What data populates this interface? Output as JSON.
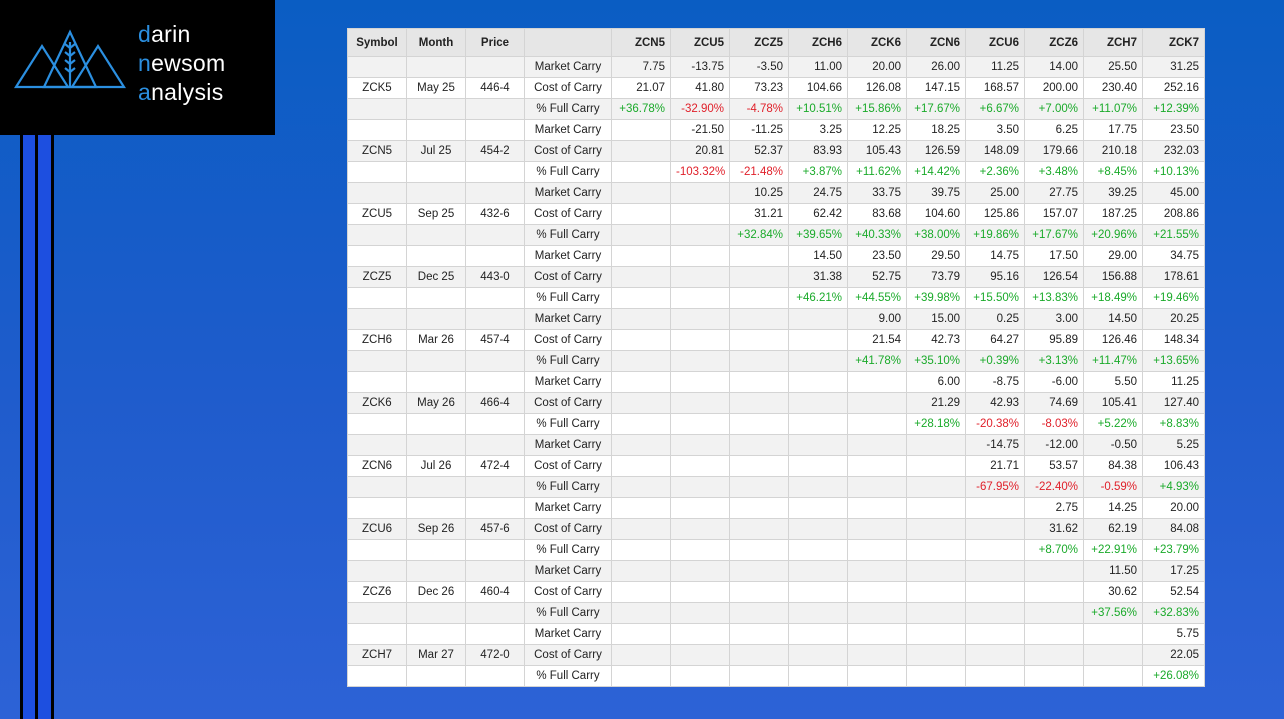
{
  "logo": {
    "lines": [
      "darin",
      "newsom",
      "analysis"
    ]
  },
  "table": {
    "columns": [
      "Symbol",
      "Month",
      "Price"
    ],
    "contracts": [
      "ZCN5",
      "ZCU5",
      "ZCZ5",
      "ZCH6",
      "ZCK6",
      "ZCN6",
      "ZCU6",
      "ZCZ6",
      "ZCH7",
      "ZCK7"
    ],
    "groups": [
      {
        "symbol": "ZCK5",
        "month": "May 25",
        "price": "446-4",
        "rows": [
          {
            "label": "Market Carry",
            "cells": [
              "7.75",
              "-13.75",
              "-3.50",
              "11.00",
              "20.00",
              "26.00",
              "11.25",
              "14.00",
              "25.50",
              "31.25"
            ]
          },
          {
            "label": "Cost of Carry",
            "cells": [
              "21.07",
              "41.80",
              "73.23",
              "104.66",
              "126.08",
              "147.15",
              "168.57",
              "200.00",
              "230.40",
              "252.16"
            ]
          },
          {
            "label": "% Full Carry",
            "cells": [
              "+36.78%",
              "-32.90%",
              "-4.78%",
              "+10.51%",
              "+15.86%",
              "+17.67%",
              "+6.67%",
              "+7.00%",
              "+11.07%",
              "+12.39%"
            ]
          }
        ]
      },
      {
        "symbol": "ZCN5",
        "month": "Jul 25",
        "price": "454-2",
        "rows": [
          {
            "label": "Market Carry",
            "cells": [
              null,
              "-21.50",
              "-11.25",
              "3.25",
              "12.25",
              "18.25",
              "3.50",
              "6.25",
              "17.75",
              "23.50"
            ]
          },
          {
            "label": "Cost of Carry",
            "cells": [
              null,
              "20.81",
              "52.37",
              "83.93",
              "105.43",
              "126.59",
              "148.09",
              "179.66",
              "210.18",
              "232.03"
            ]
          },
          {
            "label": "% Full Carry",
            "cells": [
              null,
              "-103.32%",
              "-21.48%",
              "+3.87%",
              "+11.62%",
              "+14.42%",
              "+2.36%",
              "+3.48%",
              "+8.45%",
              "+10.13%"
            ]
          }
        ]
      },
      {
        "symbol": "ZCU5",
        "month": "Sep 25",
        "price": "432-6",
        "rows": [
          {
            "label": "Market Carry",
            "cells": [
              null,
              null,
              "10.25",
              "24.75",
              "33.75",
              "39.75",
              "25.00",
              "27.75",
              "39.25",
              "45.00"
            ]
          },
          {
            "label": "Cost of Carry",
            "cells": [
              null,
              null,
              "31.21",
              "62.42",
              "83.68",
              "104.60",
              "125.86",
              "157.07",
              "187.25",
              "208.86"
            ]
          },
          {
            "label": "% Full Carry",
            "cells": [
              null,
              null,
              "+32.84%",
              "+39.65%",
              "+40.33%",
              "+38.00%",
              "+19.86%",
              "+17.67%",
              "+20.96%",
              "+21.55%"
            ]
          }
        ]
      },
      {
        "symbol": "ZCZ5",
        "month": "Dec 25",
        "price": "443-0",
        "rows": [
          {
            "label": "Market Carry",
            "cells": [
              null,
              null,
              null,
              "14.50",
              "23.50",
              "29.50",
              "14.75",
              "17.50",
              "29.00",
              "34.75"
            ]
          },
          {
            "label": "Cost of Carry",
            "cells": [
              null,
              null,
              null,
              "31.38",
              "52.75",
              "73.79",
              "95.16",
              "126.54",
              "156.88",
              "178.61"
            ]
          },
          {
            "label": "% Full Carry",
            "cells": [
              null,
              null,
              null,
              "+46.21%",
              "+44.55%",
              "+39.98%",
              "+15.50%",
              "+13.83%",
              "+18.49%",
              "+19.46%"
            ]
          }
        ]
      },
      {
        "symbol": "ZCH6",
        "month": "Mar 26",
        "price": "457-4",
        "rows": [
          {
            "label": "Market Carry",
            "cells": [
              null,
              null,
              null,
              null,
              "9.00",
              "15.00",
              "0.25",
              "3.00",
              "14.50",
              "20.25"
            ]
          },
          {
            "label": "Cost of Carry",
            "cells": [
              null,
              null,
              null,
              null,
              "21.54",
              "42.73",
              "64.27",
              "95.89",
              "126.46",
              "148.34"
            ]
          },
          {
            "label": "% Full Carry",
            "cells": [
              null,
              null,
              null,
              null,
              "+41.78%",
              "+35.10%",
              "+0.39%",
              "+3.13%",
              "+11.47%",
              "+13.65%"
            ]
          }
        ]
      },
      {
        "symbol": "ZCK6",
        "month": "May 26",
        "price": "466-4",
        "rows": [
          {
            "label": "Market Carry",
            "cells": [
              null,
              null,
              null,
              null,
              null,
              "6.00",
              "-8.75",
              "-6.00",
              "5.50",
              "11.25"
            ]
          },
          {
            "label": "Cost of Carry",
            "cells": [
              null,
              null,
              null,
              null,
              null,
              "21.29",
              "42.93",
              "74.69",
              "105.41",
              "127.40"
            ]
          },
          {
            "label": "% Full Carry",
            "cells": [
              null,
              null,
              null,
              null,
              null,
              "+28.18%",
              "-20.38%",
              "-8.03%",
              "+5.22%",
              "+8.83%"
            ]
          }
        ]
      },
      {
        "symbol": "ZCN6",
        "month": "Jul 26",
        "price": "472-4",
        "rows": [
          {
            "label": "Market Carry",
            "cells": [
              null,
              null,
              null,
              null,
              null,
              null,
              "-14.75",
              "-12.00",
              "-0.50",
              "5.25"
            ]
          },
          {
            "label": "Cost of Carry",
            "cells": [
              null,
              null,
              null,
              null,
              null,
              null,
              "21.71",
              "53.57",
              "84.38",
              "106.43"
            ]
          },
          {
            "label": "% Full Carry",
            "cells": [
              null,
              null,
              null,
              null,
              null,
              null,
              "-67.95%",
              "-22.40%",
              "-0.59%",
              "+4.93%"
            ]
          }
        ]
      },
      {
        "symbol": "ZCU6",
        "month": "Sep 26",
        "price": "457-6",
        "rows": [
          {
            "label": "Market Carry",
            "cells": [
              null,
              null,
              null,
              null,
              null,
              null,
              null,
              "2.75",
              "14.25",
              "20.00"
            ]
          },
          {
            "label": "Cost of Carry",
            "cells": [
              null,
              null,
              null,
              null,
              null,
              null,
              null,
              "31.62",
              "62.19",
              "84.08"
            ]
          },
          {
            "label": "% Full Carry",
            "cells": [
              null,
              null,
              null,
              null,
              null,
              null,
              null,
              "+8.70%",
              "+22.91%",
              "+23.79%"
            ]
          }
        ]
      },
      {
        "symbol": "ZCZ6",
        "month": "Dec 26",
        "price": "460-4",
        "rows": [
          {
            "label": "Market Carry",
            "cells": [
              null,
              null,
              null,
              null,
              null,
              null,
              null,
              null,
              "11.50",
              "17.25"
            ]
          },
          {
            "label": "Cost of Carry",
            "cells": [
              null,
              null,
              null,
              null,
              null,
              null,
              null,
              null,
              "30.62",
              "52.54"
            ]
          },
          {
            "label": "% Full Carry",
            "cells": [
              null,
              null,
              null,
              null,
              null,
              null,
              null,
              null,
              "+37.56%",
              "+32.83%"
            ]
          }
        ]
      },
      {
        "symbol": "ZCH7",
        "month": "Mar 27",
        "price": "472-0",
        "rows": [
          {
            "label": "Market Carry",
            "cells": [
              null,
              null,
              null,
              null,
              null,
              null,
              null,
              null,
              null,
              "5.75"
            ]
          },
          {
            "label": "Cost of Carry",
            "cells": [
              null,
              null,
              null,
              null,
              null,
              null,
              null,
              null,
              null,
              "22.05"
            ]
          },
          {
            "label": "% Full Carry",
            "cells": [
              null,
              null,
              null,
              null,
              null,
              null,
              null,
              null,
              null,
              "+26.08%"
            ]
          }
        ]
      }
    ]
  }
}
